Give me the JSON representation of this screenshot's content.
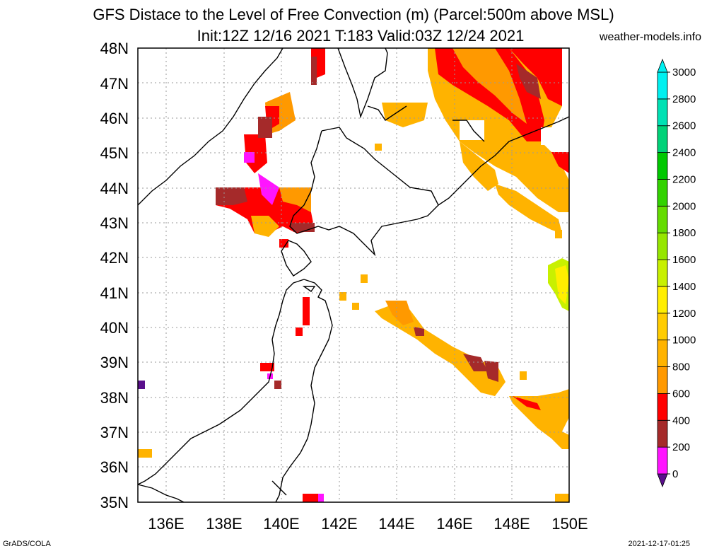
{
  "title": {
    "line1": "GFS Distace to the Level of Free Convection (m) (Parcel:500m above MSL)",
    "line2": "Init:12Z 12/16 2021 T:183 Valid:03Z 12/24 2021"
  },
  "source": "weather-models.info",
  "footer": {
    "left": "GrADS/COLA",
    "right": "2021-12-17-01:25"
  },
  "axes": {
    "lat_labels": [
      "48N",
      "47N",
      "46N",
      "45N",
      "44N",
      "43N",
      "42N",
      "41N",
      "40N",
      "39N",
      "38N",
      "37N",
      "36N",
      "35N"
    ],
    "lon_labels": [
      "136E",
      "138E",
      "140E",
      "142E",
      "144E",
      "146E",
      "148E",
      "150E"
    ]
  },
  "colorbar": {
    "levels": [
      "0",
      "200",
      "400",
      "600",
      "800",
      "1000",
      "1200",
      "1400",
      "1600",
      "1800",
      "2000",
      "2200",
      "2400",
      "2600",
      "2800",
      "3000"
    ],
    "colors": [
      "#5a0f8c",
      "#ff14ff",
      "#a52a2a",
      "#ff0000",
      "#ff9900",
      "#ffb300",
      "#ffcc00",
      "#ffee00",
      "#c8f000",
      "#96e600",
      "#64dc00",
      "#32d200",
      "#00c800",
      "#00d278",
      "#00e1b4",
      "#00f0f0"
    ]
  },
  "colors": {
    "purple": "#5a0f8c",
    "magenta": "#ff14ff",
    "brown": "#a52a2a",
    "red": "#ff0000",
    "orange": "#ff9900",
    "amber": "#ffb300",
    "gold": "#ffcc00",
    "lime": "#c8f000"
  }
}
